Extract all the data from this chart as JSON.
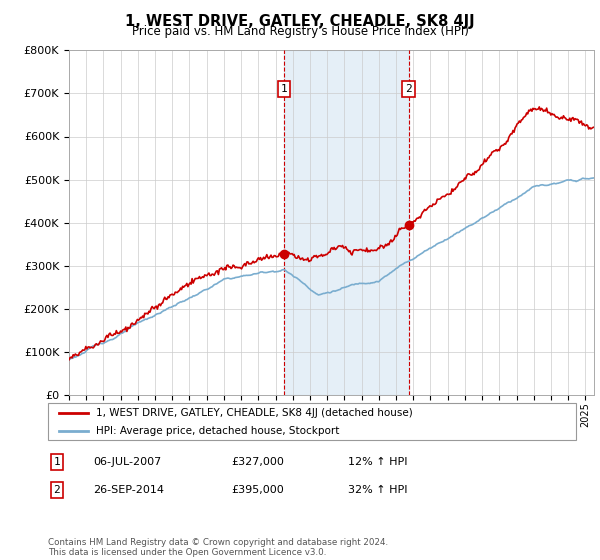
{
  "title": "1, WEST DRIVE, GATLEY, CHEADLE, SK8 4JJ",
  "subtitle": "Price paid vs. HM Land Registry's House Price Index (HPI)",
  "ylim": [
    0,
    800000
  ],
  "xlim_start": 1995.0,
  "xlim_end": 2025.5,
  "red_line_color": "#cc0000",
  "blue_line_color": "#7aadcf",
  "marker_color_red": "#cc0000",
  "bg_color": "#ffffff",
  "grid_color": "#cccccc",
  "legend_label_red": "1, WEST DRIVE, GATLEY, CHEADLE, SK8 4JJ (detached house)",
  "legend_label_blue": "HPI: Average price, detached house, Stockport",
  "transaction1_label": "1",
  "transaction1_date": "06-JUL-2007",
  "transaction1_price": "£327,000",
  "transaction1_hpi": "12% ↑ HPI",
  "transaction1_x": 2007.5,
  "transaction1_y": 327000,
  "transaction2_label": "2",
  "transaction2_date": "26-SEP-2014",
  "transaction2_price": "£395,000",
  "transaction2_hpi": "32% ↑ HPI",
  "transaction2_x": 2014.73,
  "transaction2_y": 395000,
  "vline1_x": 2007.5,
  "vline2_x": 2014.73,
  "vline_color": "#cc0000",
  "shade_color": "#cce0f0",
  "shade_alpha": 0.5,
  "copyright_text": "Contains HM Land Registry data © Crown copyright and database right 2024.\nThis data is licensed under the Open Government Licence v3.0."
}
